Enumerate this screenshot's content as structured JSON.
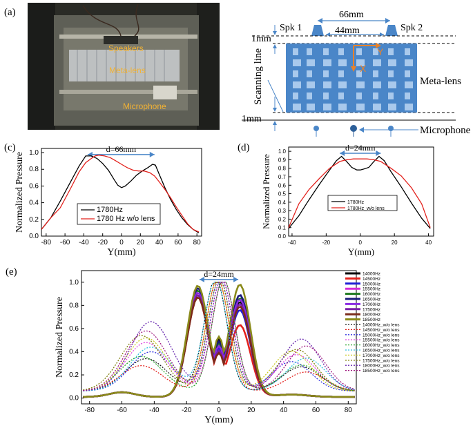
{
  "panel_labels": {
    "a": "(a)",
    "c": "(c)",
    "d": "(d)",
    "e": "(e)"
  },
  "photo": {
    "speakers_label": "Speakers",
    "lens_label": "Meta-lens",
    "mic_label": "Microphone",
    "label_color": "#f2b233"
  },
  "schematic": {
    "spk1": "Spk 1",
    "spk2": "Spk 2",
    "dim_66": "66mm",
    "dim_44": "44mm",
    "dim_1mm_top": "1mm",
    "dim_1mm_bottom": "1mm",
    "scanning_line": "Scanning line",
    "axis_y": "Y",
    "axis_x": "X",
    "metalens": "Meta-lens",
    "microphone": "Microphone",
    "lens_color": "#4a86c8",
    "cell_color": "#a9c9ec",
    "axis_color": "#e8822a"
  },
  "chart_data": [
    {
      "id": "c",
      "type": "line",
      "xlabel": "Y(mm)",
      "ylabel": "Normalized Pressure",
      "xlim": [
        -85,
        85
      ],
      "ylim": [
        0,
        1.05
      ],
      "xticks": [
        "-80",
        "-60",
        "-40",
        "-20",
        "0",
        "20",
        "40",
        "60",
        "80"
      ],
      "yticks": [
        "0.0",
        "0.2",
        "0.4",
        "0.6",
        "0.8",
        "1.0"
      ],
      "annotation": "d=66mm",
      "annotation_span": [
        -36,
        35
      ],
      "legend_placement": "lower-center",
      "series": [
        {
          "name": "1780Hz",
          "color": "#000000",
          "x": [
            -85,
            -75,
            -65,
            -55,
            -45,
            -38,
            -32,
            -26,
            -20,
            -14,
            -8,
            -4,
            0,
            4,
            10,
            16,
            22,
            28,
            33,
            36,
            40,
            46,
            52,
            58,
            64,
            70,
            76,
            82
          ],
          "y": [
            0.08,
            0.22,
            0.42,
            0.63,
            0.84,
            0.96,
            0.96,
            0.93,
            0.87,
            0.79,
            0.68,
            0.61,
            0.58,
            0.6,
            0.66,
            0.73,
            0.78,
            0.82,
            0.86,
            0.85,
            0.74,
            0.58,
            0.44,
            0.32,
            0.22,
            0.14,
            0.08,
            0.04
          ]
        },
        {
          "name": "1780 Hz  w/o lens",
          "color": "#e3211c",
          "x": [
            -85,
            -75,
            -65,
            -55,
            -45,
            -38,
            -32,
            -28,
            -24,
            -18,
            -12,
            -6,
            0,
            6,
            12,
            18,
            24,
            30,
            35,
            40,
            46,
            52,
            58,
            64,
            70,
            76,
            82
          ],
          "y": [
            0.08,
            0.22,
            0.34,
            0.55,
            0.77,
            0.88,
            0.93,
            0.96,
            0.97,
            0.96,
            0.94,
            0.9,
            0.86,
            0.82,
            0.79,
            0.78,
            0.78,
            0.76,
            0.72,
            0.65,
            0.56,
            0.46,
            0.35,
            0.25,
            0.15,
            0.08,
            0.05
          ]
        }
      ]
    },
    {
      "id": "d",
      "type": "line",
      "xlabel": "Y(mm)",
      "ylabel": "Normalized Pressure",
      "xlim": [
        -42,
        43
      ],
      "ylim": [
        0,
        1.05
      ],
      "xticks": [
        "-40",
        "-20",
        "0",
        "20",
        "40"
      ],
      "yticks": [
        "0.0",
        "0.1",
        "0.2",
        "0.3",
        "0.4",
        "0.5",
        "0.6",
        "0.7",
        "0.8",
        "0.9",
        "1.0"
      ],
      "annotation": "d=24mm",
      "annotation_span": [
        -12,
        12
      ],
      "legend_placement": "lower-center",
      "series": [
        {
          "name": "1780Hz",
          "color": "#000000",
          "x": [
            -42,
            -36,
            -30,
            -24,
            -18,
            -14,
            -11,
            -8,
            -5,
            -2,
            0,
            2,
            5,
            8,
            11,
            14,
            18,
            24,
            30,
            36,
            41
          ],
          "y": [
            0.09,
            0.24,
            0.43,
            0.61,
            0.78,
            0.89,
            0.94,
            0.88,
            0.81,
            0.78,
            0.78,
            0.79,
            0.81,
            0.88,
            0.94,
            0.89,
            0.76,
            0.58,
            0.39,
            0.21,
            0.09
          ]
        },
        {
          "name": "1780Hz_w/o lens",
          "color": "#e3211c",
          "x": [
            -42,
            -36,
            -30,
            -24,
            -18,
            -12,
            -8,
            -4,
            0,
            4,
            8,
            12,
            18,
            24,
            30,
            36,
            41
          ],
          "y": [
            0.1,
            0.38,
            0.55,
            0.68,
            0.8,
            0.88,
            0.9,
            0.91,
            0.91,
            0.91,
            0.9,
            0.88,
            0.8,
            0.71,
            0.57,
            0.38,
            0.1
          ]
        }
      ]
    },
    {
      "id": "e",
      "type": "line",
      "xlabel": "Y(mm)",
      "ylabel": "Normalized Pressure",
      "xlim": [
        -85,
        85
      ],
      "ylim": [
        -0.05,
        1.1
      ],
      "xticks": [
        "-80",
        "-60",
        "-40",
        "-20",
        "0",
        "20",
        "40",
        "60",
        "80"
      ],
      "yticks": [
        "0.0",
        "0.2",
        "0.4",
        "0.6",
        "0.8",
        "1.0"
      ],
      "annotation": "d=24mm",
      "annotation_span": [
        -12,
        12
      ],
      "legend_placement": "right-outside",
      "series": [
        {
          "name": "14000Hz",
          "color": "#000000",
          "peak": 0.88,
          "dip": 0.5,
          "peak2": 0.82,
          "style": "solid"
        },
        {
          "name": "14500Hz",
          "color": "#e3211c",
          "peak": 0.86,
          "dip": 0.38,
          "peak2": 0.62,
          "style": "solid"
        },
        {
          "name": "15000Hz",
          "color": "#1f1fd6",
          "peak": 0.88,
          "dip": 0.42,
          "peak2": 0.75,
          "style": "solid"
        },
        {
          "name": "15500Hz",
          "color": "#d62ad6",
          "peak": 0.9,
          "dip": 0.4,
          "peak2": 0.78,
          "style": "solid"
        },
        {
          "name": "16000Hz",
          "color": "#1d7a1d",
          "peak": 0.92,
          "dip": 0.46,
          "peak2": 0.85,
          "style": "solid"
        },
        {
          "name": "16500Hz",
          "color": "#1a1a7a",
          "peak": 0.94,
          "dip": 0.48,
          "peak2": 0.88,
          "style": "solid"
        },
        {
          "name": "17000Hz",
          "color": "#8a2be2",
          "peak": 0.9,
          "dip": 0.44,
          "peak2": 0.84,
          "style": "solid"
        },
        {
          "name": "17500Hz",
          "color": "#7a1fa8",
          "peak": 0.88,
          "dip": 0.4,
          "peak2": 0.8,
          "style": "solid"
        },
        {
          "name": "18000Hz",
          "color": "#7a2a1a",
          "peak": 0.86,
          "dip": 0.38,
          "peak2": 0.78,
          "style": "solid"
        },
        {
          "name": "18500Hz",
          "color": "#8a8a1a",
          "peak": 0.96,
          "dip": 0.52,
          "peak2": 0.97,
          "style": "solid"
        },
        {
          "name": "14000Hz_w/o lens",
          "color": "#1a1a1a",
          "side": 0.28,
          "style": "dotted"
        },
        {
          "name": "14500Hz_w/o lens",
          "color": "#e3211c",
          "side": 0.22,
          "style": "dotted"
        },
        {
          "name": "15000Hz_w/o lens",
          "color": "#3535e0",
          "side": 0.34,
          "style": "dotted"
        },
        {
          "name": "15500Hz_w/o lens",
          "color": "#e040e0",
          "side": 0.42,
          "style": "dotted"
        },
        {
          "name": "16000Hz_w/o lens",
          "color": "#2ea82e",
          "side": 0.3,
          "style": "dotted"
        },
        {
          "name": "16500Hz_w/o lens",
          "color": "#30c0e0",
          "side": 0.38,
          "style": "dotted"
        },
        {
          "name": "17000Hz_w/o lens",
          "color": "#c8c820",
          "side": 0.46,
          "style": "dotted"
        },
        {
          "name": "17500Hz_w/o lens",
          "color": "#808010",
          "side": 0.48,
          "style": "dotted"
        },
        {
          "name": "18000Hz_w/o lens",
          "color": "#6a2ab0",
          "side": 0.6,
          "style": "dotted"
        },
        {
          "name": "18500Hz_w/o lens",
          "color": "#a01a80",
          "side": 0.52,
          "style": "dotted"
        }
      ]
    }
  ]
}
